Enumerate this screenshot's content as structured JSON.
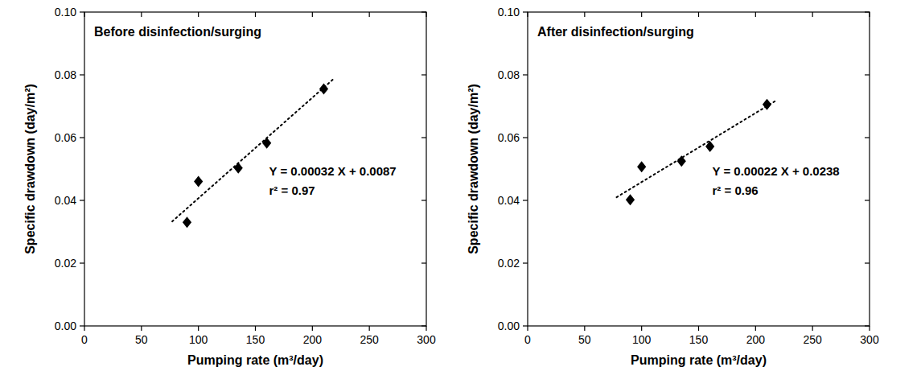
{
  "chart_data": [
    {
      "type": "scatter",
      "title": "Before disinfection/surging",
      "x_label": "Pumping rate (m³/day)",
      "y_label": "Specific drawdown (day/m²)",
      "annotations": [
        "Y = 0.00032 X + 0.0087",
        "r² = 0.97"
      ],
      "xlim": [
        0,
        300
      ],
      "xticks": [
        0,
        50,
        100,
        150,
        200,
        250,
        300
      ],
      "ylim": [
        0,
        0.1
      ],
      "yticks": [
        {
          "value": 0,
          "label": "0.00"
        },
        {
          "value": 0.02,
          "label": "0.02"
        },
        {
          "value": 0.04,
          "label": "0.04"
        },
        {
          "value": 0.06,
          "label": "0.06"
        },
        {
          "value": 0.08,
          "label": "0.08"
        },
        {
          "value": 0.1,
          "label": "0.10"
        }
      ],
      "grid": false,
      "series": [
        {
          "type": "scatter",
          "marker": "diamond",
          "color": "#000000",
          "x": [
            90,
            100,
            135,
            160,
            210
          ],
          "values": [
            0.033,
            0.046,
            0.0503,
            0.0583,
            0.0755
          ]
        },
        {
          "type": "line",
          "line_style": "dotted",
          "color": "#000000",
          "x": [
            77,
            218
          ],
          "values": [
            0.0333,
            0.0785
          ]
        }
      ]
    },
    {
      "type": "scatter",
      "title": "After disinfection/surging",
      "x_label": "Pumping rate (m³/day)",
      "y_label": "Specific drawdown (day/m²)",
      "annotations": [
        "Y = 0.00022 X + 0.0238",
        "r² = 0.96"
      ],
      "xlim": [
        0,
        300
      ],
      "xticks": [
        0,
        50,
        100,
        150,
        200,
        250,
        300
      ],
      "ylim": [
        0,
        0.1
      ],
      "yticks": [
        {
          "value": 0,
          "label": "0.00"
        },
        {
          "value": 0.02,
          "label": "0.02"
        },
        {
          "value": 0.04,
          "label": "0.04"
        },
        {
          "value": 0.06,
          "label": "0.06"
        },
        {
          "value": 0.08,
          "label": "0.08"
        },
        {
          "value": 0.1,
          "label": "0.10"
        }
      ],
      "grid": false,
      "series": [
        {
          "type": "scatter",
          "marker": "diamond",
          "color": "#000000",
          "x": [
            90,
            100,
            135,
            160,
            210
          ],
          "values": [
            0.0402,
            0.0507,
            0.0525,
            0.0572,
            0.0706
          ]
        },
        {
          "type": "line",
          "line_style": "dotted",
          "color": "#000000",
          "x": [
            78,
            218
          ],
          "values": [
            0.041,
            0.0718
          ]
        }
      ]
    }
  ]
}
